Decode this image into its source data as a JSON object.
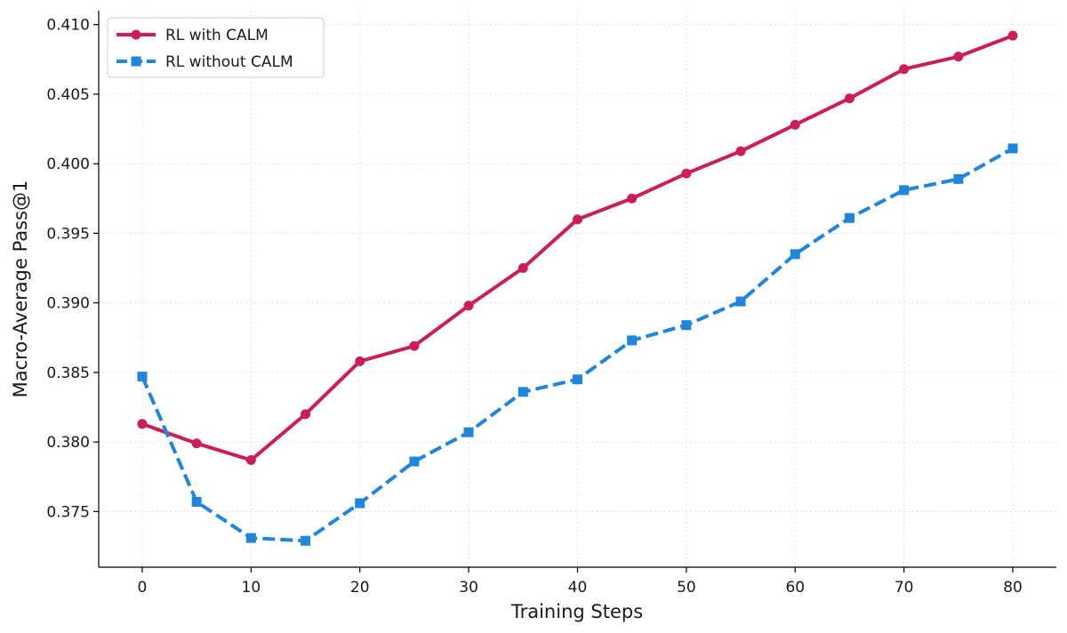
{
  "chart_data": {
    "type": "line",
    "title": "",
    "xlabel": "Training Steps",
    "ylabel": "Macro-Average Pass@1",
    "xlim": [
      -4,
      84
    ],
    "ylim": [
      0.371,
      0.411
    ],
    "x_ticks": [
      0,
      10,
      20,
      30,
      40,
      50,
      60,
      70,
      80
    ],
    "x_tick_labels": [
      "0",
      "10",
      "20",
      "30",
      "40",
      "50",
      "60",
      "70",
      "80"
    ],
    "y_ticks": [
      0.375,
      0.38,
      0.385,
      0.39,
      0.395,
      0.4,
      0.405,
      0.41
    ],
    "y_tick_labels": [
      "0.375",
      "0.380",
      "0.385",
      "0.390",
      "0.395",
      "0.400",
      "0.405",
      "0.410"
    ],
    "grid": true,
    "legend_position": "top-left",
    "x": [
      0,
      5,
      10,
      15,
      20,
      25,
      30,
      35,
      40,
      45,
      50,
      55,
      60,
      65,
      70,
      75,
      80
    ],
    "series": [
      {
        "name": "RL with CALM",
        "color": "#cc1d5a",
        "marker": "circle",
        "linestyle": "solid",
        "values": [
          0.3813,
          0.3799,
          0.3787,
          0.382,
          0.3858,
          0.3869,
          0.3898,
          0.3925,
          0.396,
          0.3975,
          0.3993,
          0.4009,
          0.4028,
          0.4047,
          0.4068,
          0.4077,
          0.4092
        ]
      },
      {
        "name": "RL without CALM",
        "color": "#1f86db",
        "marker": "square",
        "linestyle": "dashed",
        "values": [
          0.3847,
          0.3757,
          0.3731,
          0.3729,
          0.3756,
          0.3786,
          0.3807,
          0.3836,
          0.3845,
          0.3873,
          0.3884,
          0.3901,
          0.3935,
          0.3961,
          0.3981,
          0.3989,
          0.4011
        ]
      }
    ]
  }
}
